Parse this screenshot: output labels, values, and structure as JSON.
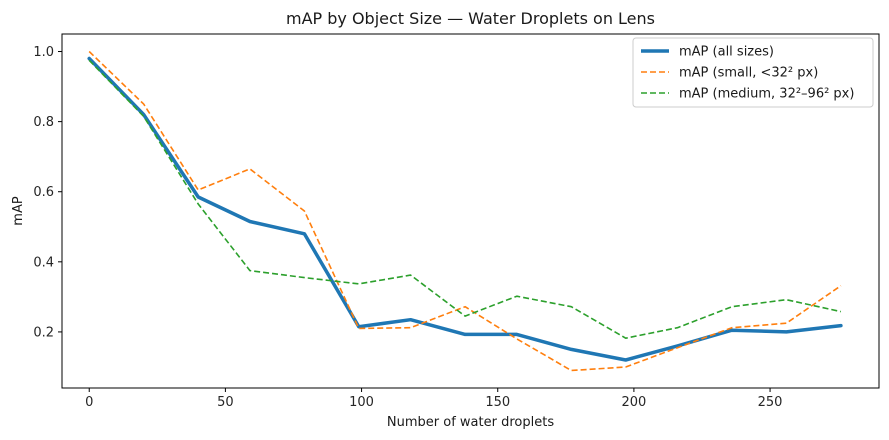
{
  "chart_data": {
    "type": "line",
    "title": "mAP by Object Size — Water Droplets on Lens",
    "xlabel": "Number of water droplets",
    "ylabel": "mAP",
    "xlim": [
      -10,
      290
    ],
    "ylim": [
      0.04,
      1.05
    ],
    "xticks": [
      0,
      50,
      100,
      150,
      200,
      250
    ],
    "yticks": [
      0.2,
      0.4,
      0.6,
      0.8,
      1.0
    ],
    "xtick_labels": [
      "0",
      "50",
      "100",
      "150",
      "200",
      "250"
    ],
    "ytick_labels": [
      "0.2",
      "0.4",
      "0.6",
      "0.8",
      "1.0"
    ],
    "grid": false,
    "legend_position": "top-right",
    "x": [
      0,
      20,
      40,
      59,
      79,
      99,
      118,
      138,
      157,
      177,
      197,
      216,
      236,
      256,
      276
    ],
    "series": [
      {
        "name": "mAP (all sizes)",
        "color": "#1f77b4",
        "style": "solid",
        "values": [
          0.98,
          0.82,
          0.585,
          0.515,
          0.48,
          0.215,
          0.235,
          0.193,
          0.193,
          0.15,
          0.12,
          0.16,
          0.205,
          0.2,
          0.218
        ]
      },
      {
        "name": "mAP (small, <32² px)",
        "color": "#ff7f0e",
        "style": "dashed",
        "values": [
          1.0,
          0.85,
          0.605,
          0.665,
          0.545,
          0.21,
          0.212,
          0.272,
          0.18,
          0.09,
          0.1,
          0.155,
          0.212,
          0.225,
          0.332
        ]
      },
      {
        "name": "mAP (medium, 32²–96² px)",
        "color": "#2ca02c",
        "style": "dashed",
        "values": [
          0.975,
          0.815,
          0.565,
          0.375,
          0.355,
          0.337,
          0.362,
          0.245,
          0.302,
          0.272,
          0.182,
          0.212,
          0.272,
          0.292,
          0.258
        ]
      }
    ]
  }
}
